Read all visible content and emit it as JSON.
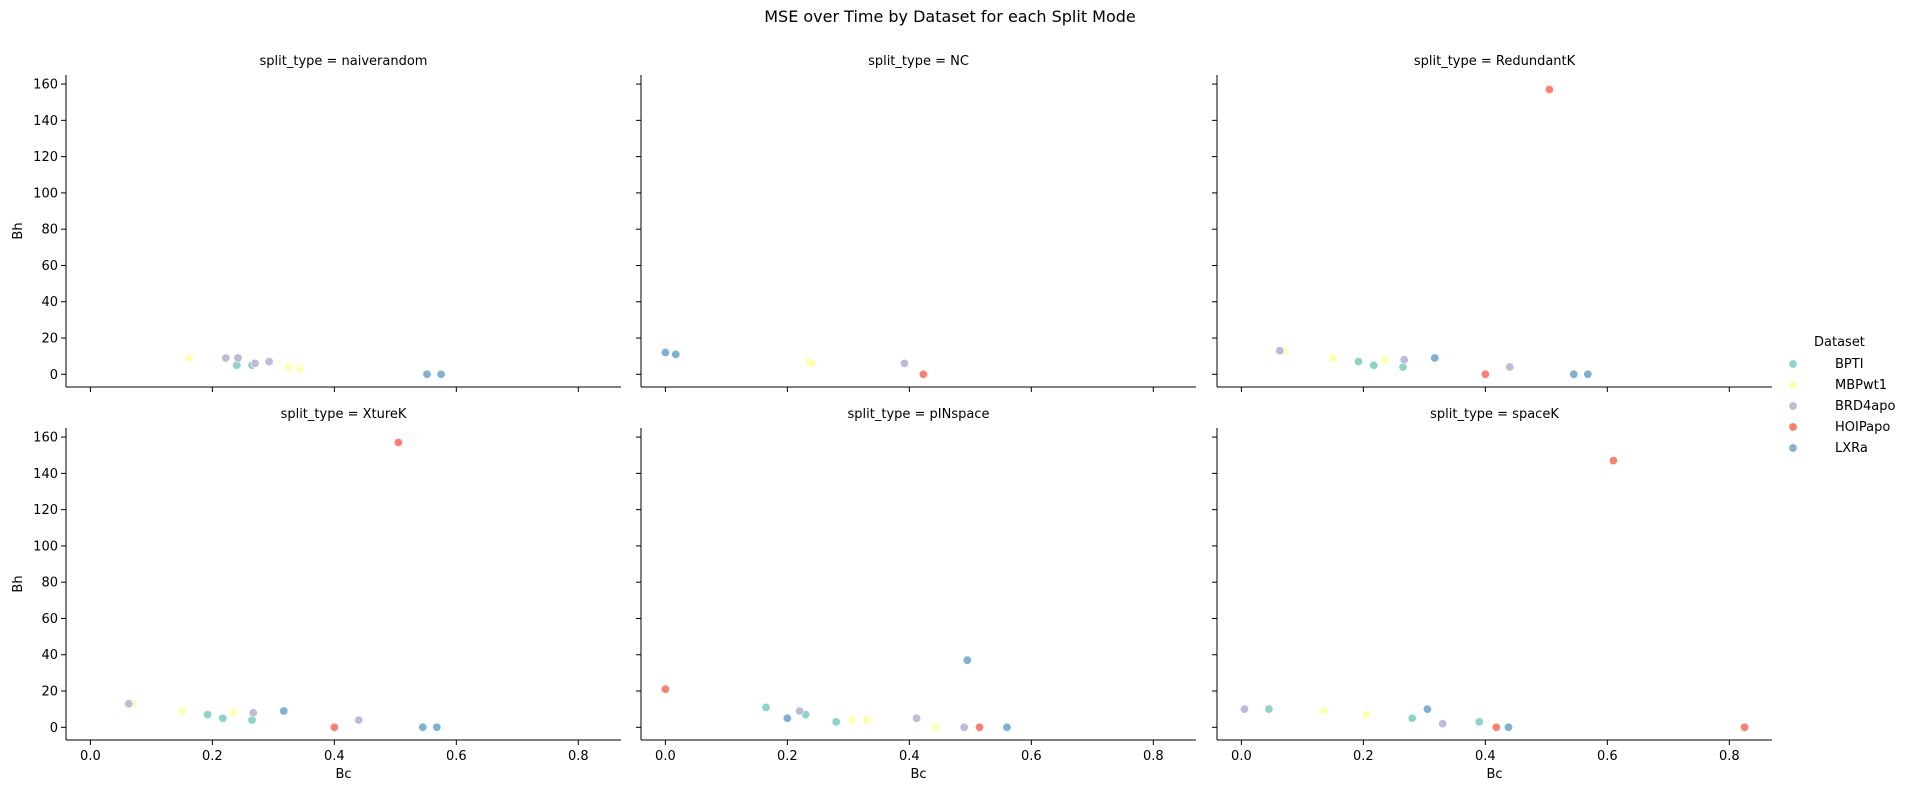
{
  "figure_title": "MSE over Time by Dataset for each Split Mode",
  "legend": {
    "title": "Dataset",
    "entries": [
      {
        "name": "BPTI",
        "color": "#8dd3c7"
      },
      {
        "name": "MBPwt1",
        "color": "#ffffb3"
      },
      {
        "name": "BRD4apo",
        "color": "#bebada"
      },
      {
        "name": "HOIPapo",
        "color": "#fb8072"
      },
      {
        "name": "LXRa",
        "color": "#80b1d3"
      }
    ]
  },
  "chart_data": {
    "type": "scatter",
    "xlabel": "Bc",
    "ylabel": "Bh",
    "xlim": [
      -0.04,
      0.87
    ],
    "ylim": [
      -7,
      165
    ],
    "xticks": [
      0.0,
      0.2,
      0.4,
      0.6,
      0.8
    ],
    "xtick_labels": [
      "0.0",
      "0.2",
      "0.4",
      "0.6",
      "0.8"
    ],
    "yticks": [
      0,
      20,
      40,
      60,
      80,
      100,
      120,
      140,
      160
    ],
    "ytick_labels": [
      "0",
      "20",
      "40",
      "60",
      "80",
      "100",
      "120",
      "140",
      "160"
    ],
    "grid": false,
    "legend_position": "right",
    "facets": [
      {
        "title": "split_type = naiverandom",
        "series": [
          {
            "name": "BPTI",
            "x": [
              0.24,
              0.265
            ],
            "y": [
              5,
              5
            ]
          },
          {
            "name": "MBPwt1",
            "x": [
              0.162,
              0.325,
              0.343
            ],
            "y": [
              9,
              4,
              3
            ]
          },
          {
            "name": "BRD4apo",
            "x": [
              0.222,
              0.242,
              0.27,
              0.293
            ],
            "y": [
              9,
              9,
              6,
              7
            ]
          },
          {
            "name": "HOIPapo",
            "x": [],
            "y": []
          },
          {
            "name": "LXRa",
            "x": [
              0.552,
              0.575
            ],
            "y": [
              0,
              0
            ]
          }
        ]
      },
      {
        "title": "split_type = NC",
        "series": [
          {
            "name": "BPTI",
            "x": [],
            "y": []
          },
          {
            "name": "MBPwt1",
            "x": [
              0.235,
              0.24
            ],
            "y": [
              7,
              6
            ]
          },
          {
            "name": "BRD4apo",
            "x": [
              0.392
            ],
            "y": [
              6
            ]
          },
          {
            "name": "HOIPapo",
            "x": [
              0.423
            ],
            "y": [
              0
            ]
          },
          {
            "name": "LXRa",
            "x": [
              0.0,
              0.017
            ],
            "y": [
              12,
              11
            ]
          }
        ]
      },
      {
        "title": "split_type = RedundantK",
        "series": [
          {
            "name": "BPTI",
            "x": [
              0.192,
              0.217,
              0.265
            ],
            "y": [
              7,
              5,
              4
            ]
          },
          {
            "name": "MBPwt1",
            "x": [
              0.07,
              0.15,
              0.235
            ],
            "y": [
              13,
              9,
              8
            ]
          },
          {
            "name": "BRD4apo",
            "x": [
              0.063,
              0.267,
              0.44
            ],
            "y": [
              13,
              8,
              4
            ]
          },
          {
            "name": "HOIPapo",
            "x": [
              0.4,
              0.505
            ],
            "y": [
              0,
              157
            ]
          },
          {
            "name": "LXRa",
            "x": [
              0.317,
              0.545,
              0.568
            ],
            "y": [
              9,
              0,
              0
            ]
          }
        ]
      },
      {
        "title": "split_type = XtureK",
        "series": [
          {
            "name": "BPTI",
            "x": [
              0.192,
              0.217,
              0.265
            ],
            "y": [
              7,
              5,
              4
            ]
          },
          {
            "name": "MBPwt1",
            "x": [
              0.07,
              0.15,
              0.235
            ],
            "y": [
              13,
              9,
              8
            ]
          },
          {
            "name": "BRD4apo",
            "x": [
              0.063,
              0.267,
              0.44
            ],
            "y": [
              13,
              8,
              4
            ]
          },
          {
            "name": "HOIPapo",
            "x": [
              0.4,
              0.505
            ],
            "y": [
              0,
              157
            ]
          },
          {
            "name": "LXRa",
            "x": [
              0.317,
              0.545,
              0.568
            ],
            "y": [
              9,
              0,
              0
            ]
          }
        ]
      },
      {
        "title": "split_type = pINspace",
        "series": [
          {
            "name": "BPTI",
            "x": [
              0.165,
              0.23,
              0.28
            ],
            "y": [
              11,
              7,
              3
            ]
          },
          {
            "name": "MBPwt1",
            "x": [
              0.305,
              0.33,
              0.443
            ],
            "y": [
              4,
              4,
              0
            ]
          },
          {
            "name": "BRD4apo",
            "x": [
              0.22,
              0.412,
              0.49
            ],
            "y": [
              9,
              5,
              0
            ]
          },
          {
            "name": "HOIPapo",
            "x": [
              0.0,
              0.515
            ],
            "y": [
              21,
              0
            ]
          },
          {
            "name": "LXRa",
            "x": [
              0.2,
              0.495,
              0.56
            ],
            "y": [
              5,
              37,
              0
            ]
          }
        ]
      },
      {
        "title": "split_type = spaceK",
        "series": [
          {
            "name": "BPTI",
            "x": [
              0.045,
              0.28,
              0.39
            ],
            "y": [
              10,
              5,
              3
            ]
          },
          {
            "name": "MBPwt1",
            "x": [
              0.135,
              0.205
            ],
            "y": [
              9,
              7
            ]
          },
          {
            "name": "BRD4apo",
            "x": [
              0.005,
              0.33
            ],
            "y": [
              10,
              2
            ]
          },
          {
            "name": "HOIPapo",
            "x": [
              0.418,
              0.61,
              0.825
            ],
            "y": [
              0,
              147,
              0
            ]
          },
          {
            "name": "LXRa",
            "x": [
              0.305,
              0.438
            ],
            "y": [
              10,
              0
            ]
          }
        ]
      }
    ]
  }
}
